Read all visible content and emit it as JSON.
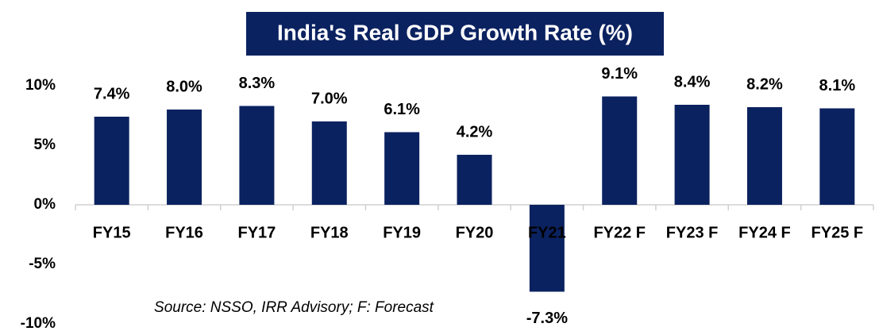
{
  "chart_data": {
    "type": "bar",
    "title": "India's Real GDP Growth Rate (%)",
    "annotation": "Source: NSSO, IRR Advisory; F: Forecast",
    "categories": [
      "FY15",
      "FY16",
      "FY17",
      "FY18",
      "FY19",
      "FY20",
      "FY21",
      "FY22 F",
      "FY23 F",
      "FY24 F",
      "FY25 F"
    ],
    "values": [
      7.4,
      8.0,
      8.3,
      7.0,
      6.1,
      4.2,
      -7.3,
      9.1,
      8.4,
      8.2,
      8.1
    ],
    "value_labels": [
      "7.4%",
      "8.0%",
      "8.3%",
      "7.0%",
      "6.1%",
      "4.2%",
      "-7.3%",
      "9.1%",
      "8.4%",
      "8.2%",
      "8.1%"
    ],
    "color": "#0b2260",
    "ylim": [
      -10,
      10
    ],
    "yticks": [
      {
        "value": -10,
        "label": "-10%"
      },
      {
        "value": -5,
        "label": "-5%"
      },
      {
        "value": 0,
        "label": "0%"
      },
      {
        "value": 5,
        "label": "5%"
      },
      {
        "value": 10,
        "label": "10%"
      }
    ],
    "grid": false
  }
}
